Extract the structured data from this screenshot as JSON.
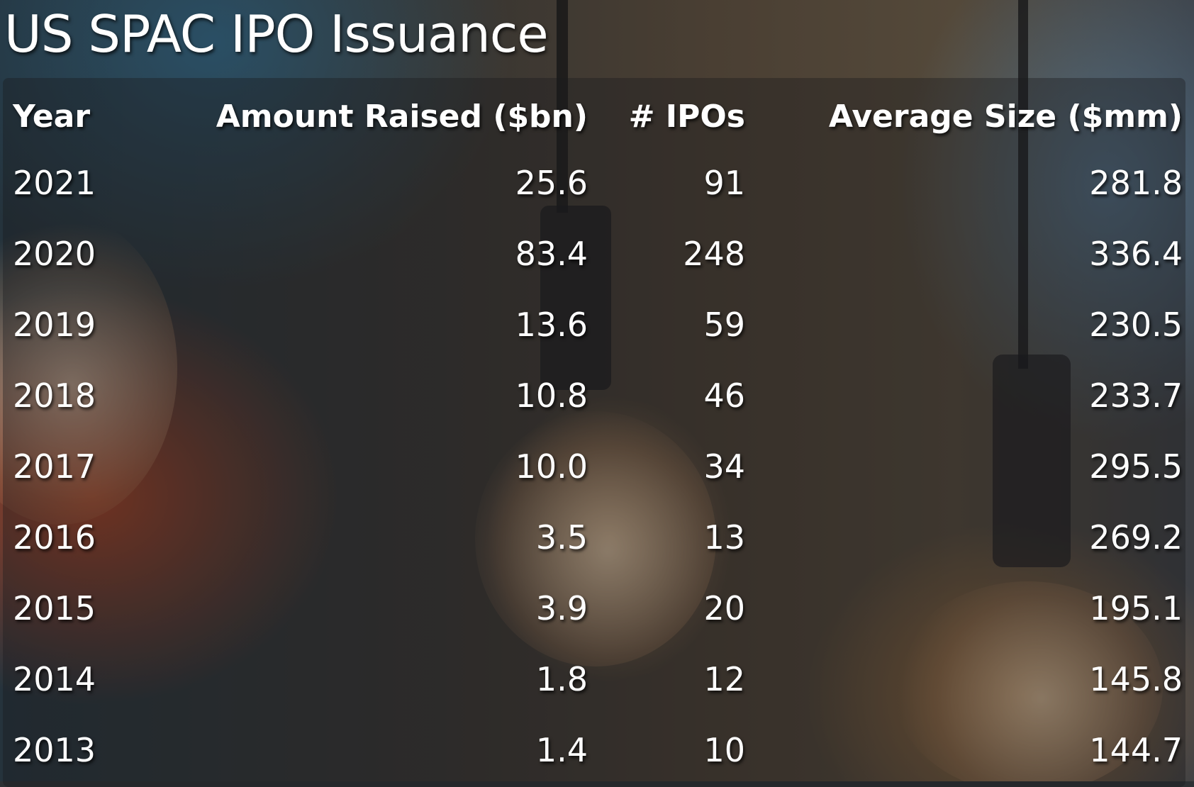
{
  "title": "US SPAC IPO Issuance",
  "chart_data": {
    "type": "table",
    "columns": [
      "Year",
      "Amount Raised ($bn)",
      "# IPOs",
      "Average Size ($mm)"
    ],
    "rows": [
      [
        "2021",
        "25.6",
        "91",
        "281.8"
      ],
      [
        "2020",
        "83.4",
        "248",
        "336.4"
      ],
      [
        "2019",
        "13.6",
        "59",
        "230.5"
      ],
      [
        "2018",
        "10.8",
        "46",
        "233.7"
      ],
      [
        "2017",
        "10.0",
        "34",
        "295.5"
      ],
      [
        "2016",
        "3.5",
        "13",
        "269.2"
      ],
      [
        "2015",
        "3.9",
        "20",
        "195.1"
      ],
      [
        "2014",
        "1.8",
        "12",
        "145.8"
      ],
      [
        "2013",
        "1.4",
        "10",
        "144.7"
      ]
    ]
  }
}
